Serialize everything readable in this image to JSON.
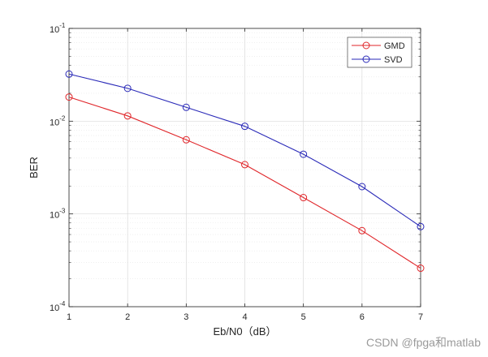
{
  "chart_data": {
    "type": "line",
    "xlabel": "Eb/N0（dB）",
    "ylabel": "BER",
    "xlim": [
      1,
      7
    ],
    "ylim": [
      0.0001,
      0.1
    ],
    "yscale": "log",
    "grid": true,
    "minor_grid": true,
    "legend_position": "top-right",
    "x_ticks": [
      "1",
      "2",
      "3",
      "4",
      "5",
      "6",
      "7"
    ],
    "y_ticks": [
      {
        "base": "10",
        "exp": "-4"
      },
      {
        "base": "10",
        "exp": "-3"
      },
      {
        "base": "10",
        "exp": "-2"
      },
      {
        "base": "10",
        "exp": "-1"
      }
    ],
    "x": [
      1,
      2,
      3,
      4,
      5,
      6,
      7
    ],
    "series": [
      {
        "name": "GMD",
        "color": "#e0262a",
        "marker": "circle",
        "values": [
          0.0182,
          0.0114,
          0.0063,
          0.0034,
          0.0015,
          0.00066,
          0.00026
        ]
      },
      {
        "name": "SVD",
        "color": "#2a2ab8",
        "marker": "circle",
        "values": [
          0.0322,
          0.0226,
          0.0141,
          0.0088,
          0.0044,
          0.00197,
          0.00073
        ]
      }
    ]
  },
  "watermark": "CSDN @fpga和matlab"
}
